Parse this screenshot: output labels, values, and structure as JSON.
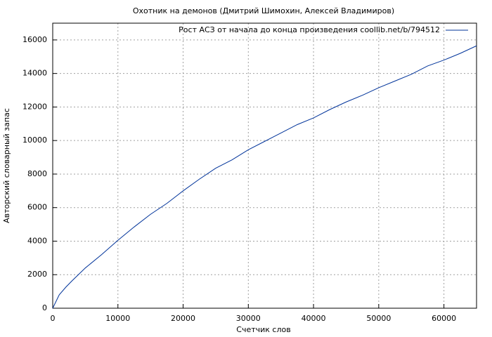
{
  "chart_data": {
    "type": "line",
    "title": "Охотник на демонов (Дмитрий Шимохин, Алексей Владимиров)",
    "x_label": "Счетчик слов",
    "y_label": "Авторский словарный запас",
    "x": [
      0,
      1000,
      2000,
      3000,
      5000,
      7500,
      10000,
      12500,
      15000,
      17500,
      20000,
      22500,
      25000,
      27500,
      30000,
      32500,
      35000,
      37500,
      40000,
      42500,
      45000,
      47500,
      50000,
      52500,
      55000,
      57500,
      60000,
      62500,
      65000
    ],
    "series": [
      {
        "name": "Рост АСЗ от начала до конца произведения coollib.net/b/794512",
        "color": "#00339a",
        "values": [
          0,
          800,
          1250,
          1650,
          2400,
          3200,
          4050,
          4850,
          5600,
          6250,
          7000,
          7700,
          8350,
          8850,
          9450,
          9950,
          10450,
          10950,
          11350,
          11850,
          12300,
          12700,
          13150,
          13550,
          13950,
          14450,
          14800,
          15200,
          15650
        ]
      }
    ],
    "xlim": [
      0,
      65000
    ],
    "xticks": [
      0,
      10000,
      20000,
      30000,
      40000,
      50000,
      60000
    ],
    "ylim": [
      0,
      17000
    ],
    "yticks": [
      0,
      2000,
      4000,
      6000,
      8000,
      10000,
      12000,
      14000,
      16000
    ],
    "grid": true,
    "legend": "top-right"
  }
}
